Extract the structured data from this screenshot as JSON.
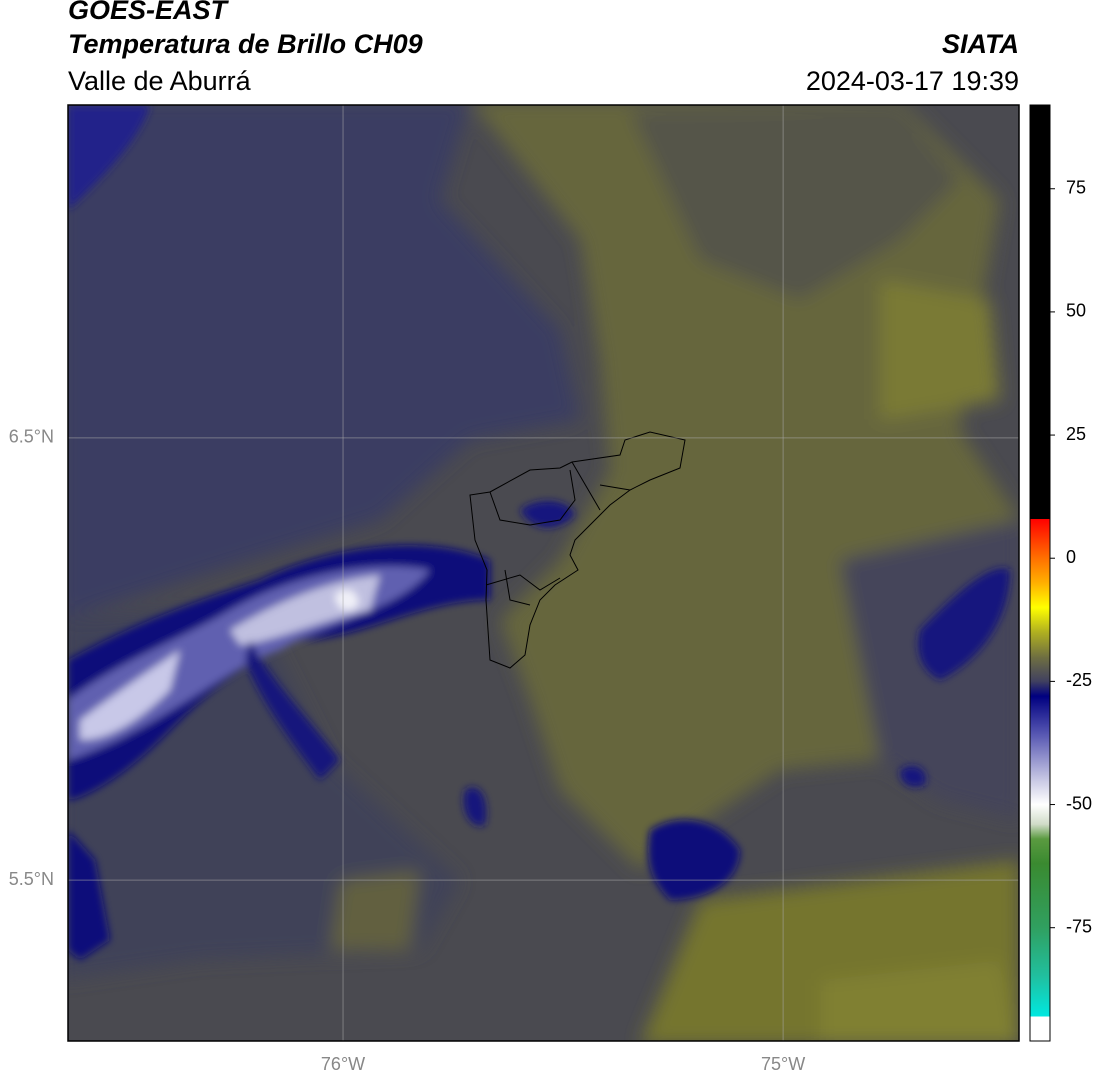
{
  "header": {
    "title": "GOES-EAST",
    "subtitle": "Temperatura de Brillo CH09",
    "source": "SIATA",
    "region": "Valle de Aburrá",
    "datetime": "2024-03-17 19:39"
  },
  "map": {
    "lonlim": [
      -76.625,
      -74.464
    ],
    "latlim": [
      5.136,
      7.253
    ],
    "lonticks": [
      {
        "value": -76,
        "label": "76°W"
      },
      {
        "value": -75,
        "label": "75°W"
      }
    ],
    "latticks": [
      {
        "value": 6.5,
        "label": "6.5°N"
      },
      {
        "value": 5.5,
        "label": "5.5°N"
      }
    ],
    "grid": true
  },
  "colorbar": {
    "lim": [
      -98,
      92
    ],
    "ticks": [
      75,
      50,
      25,
      0,
      -25,
      -50,
      -75
    ],
    "stops": [
      [
        -98,
        "#ffffff"
      ],
      [
        -93,
        "#ffffff"
      ],
      [
        -93,
        "#00e8e0"
      ],
      [
        -85,
        "#20c0a0"
      ],
      [
        -75,
        "#30a060"
      ],
      [
        -62,
        "#3a8a30"
      ],
      [
        -57,
        "#5a9a40"
      ],
      [
        -54,
        "#d0dcc8"
      ],
      [
        -50,
        "#ffffff"
      ],
      [
        -45,
        "#c8c8e4"
      ],
      [
        -36,
        "#5a5ab4"
      ],
      [
        -28,
        "#000080"
      ],
      [
        -25,
        "#404060"
      ],
      [
        -20,
        "#707040"
      ],
      [
        -15,
        "#b0b020"
      ],
      [
        -10,
        "#ffff00"
      ],
      [
        -5,
        "#ffb000"
      ],
      [
        0,
        "#ff7000"
      ],
      [
        8,
        "#ff0000"
      ],
      [
        8,
        "#000000"
      ],
      [
        92,
        "#000000"
      ]
    ]
  }
}
